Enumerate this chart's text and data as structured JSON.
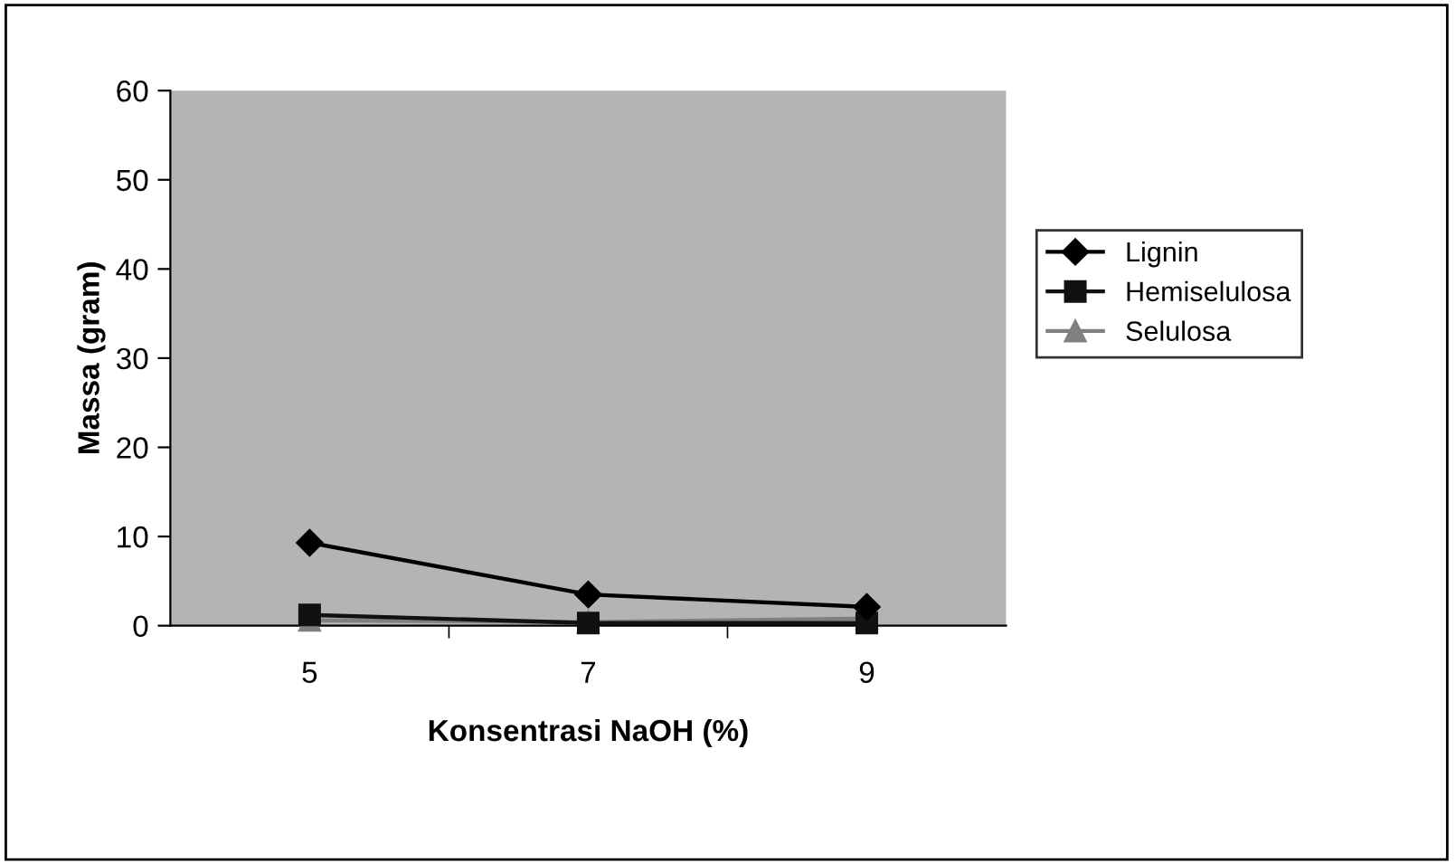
{
  "chart_data": {
    "type": "line",
    "xlabel": "Konsentrasi NaOH (%)",
    "ylabel": "Massa (gram)",
    "categories": [
      "5",
      "7",
      "9"
    ],
    "series": [
      {
        "name": "Lignin",
        "color": "#000000",
        "marker": "diamond",
        "values": [
          9.3,
          3.5,
          2.1
        ]
      },
      {
        "name": "Hemiselulosa",
        "color": "#111111",
        "marker": "square",
        "values": [
          1.2,
          0.3,
          0.3
        ]
      },
      {
        "name": "Selulosa",
        "color": "#808080",
        "marker": "triangle",
        "values": [
          0.6,
          0.4,
          0.8
        ]
      }
    ],
    "ylim": [
      0,
      60
    ],
    "yticks": [
      0,
      10,
      20,
      30,
      40,
      50,
      60
    ],
    "grid": false,
    "legend": "right"
  }
}
